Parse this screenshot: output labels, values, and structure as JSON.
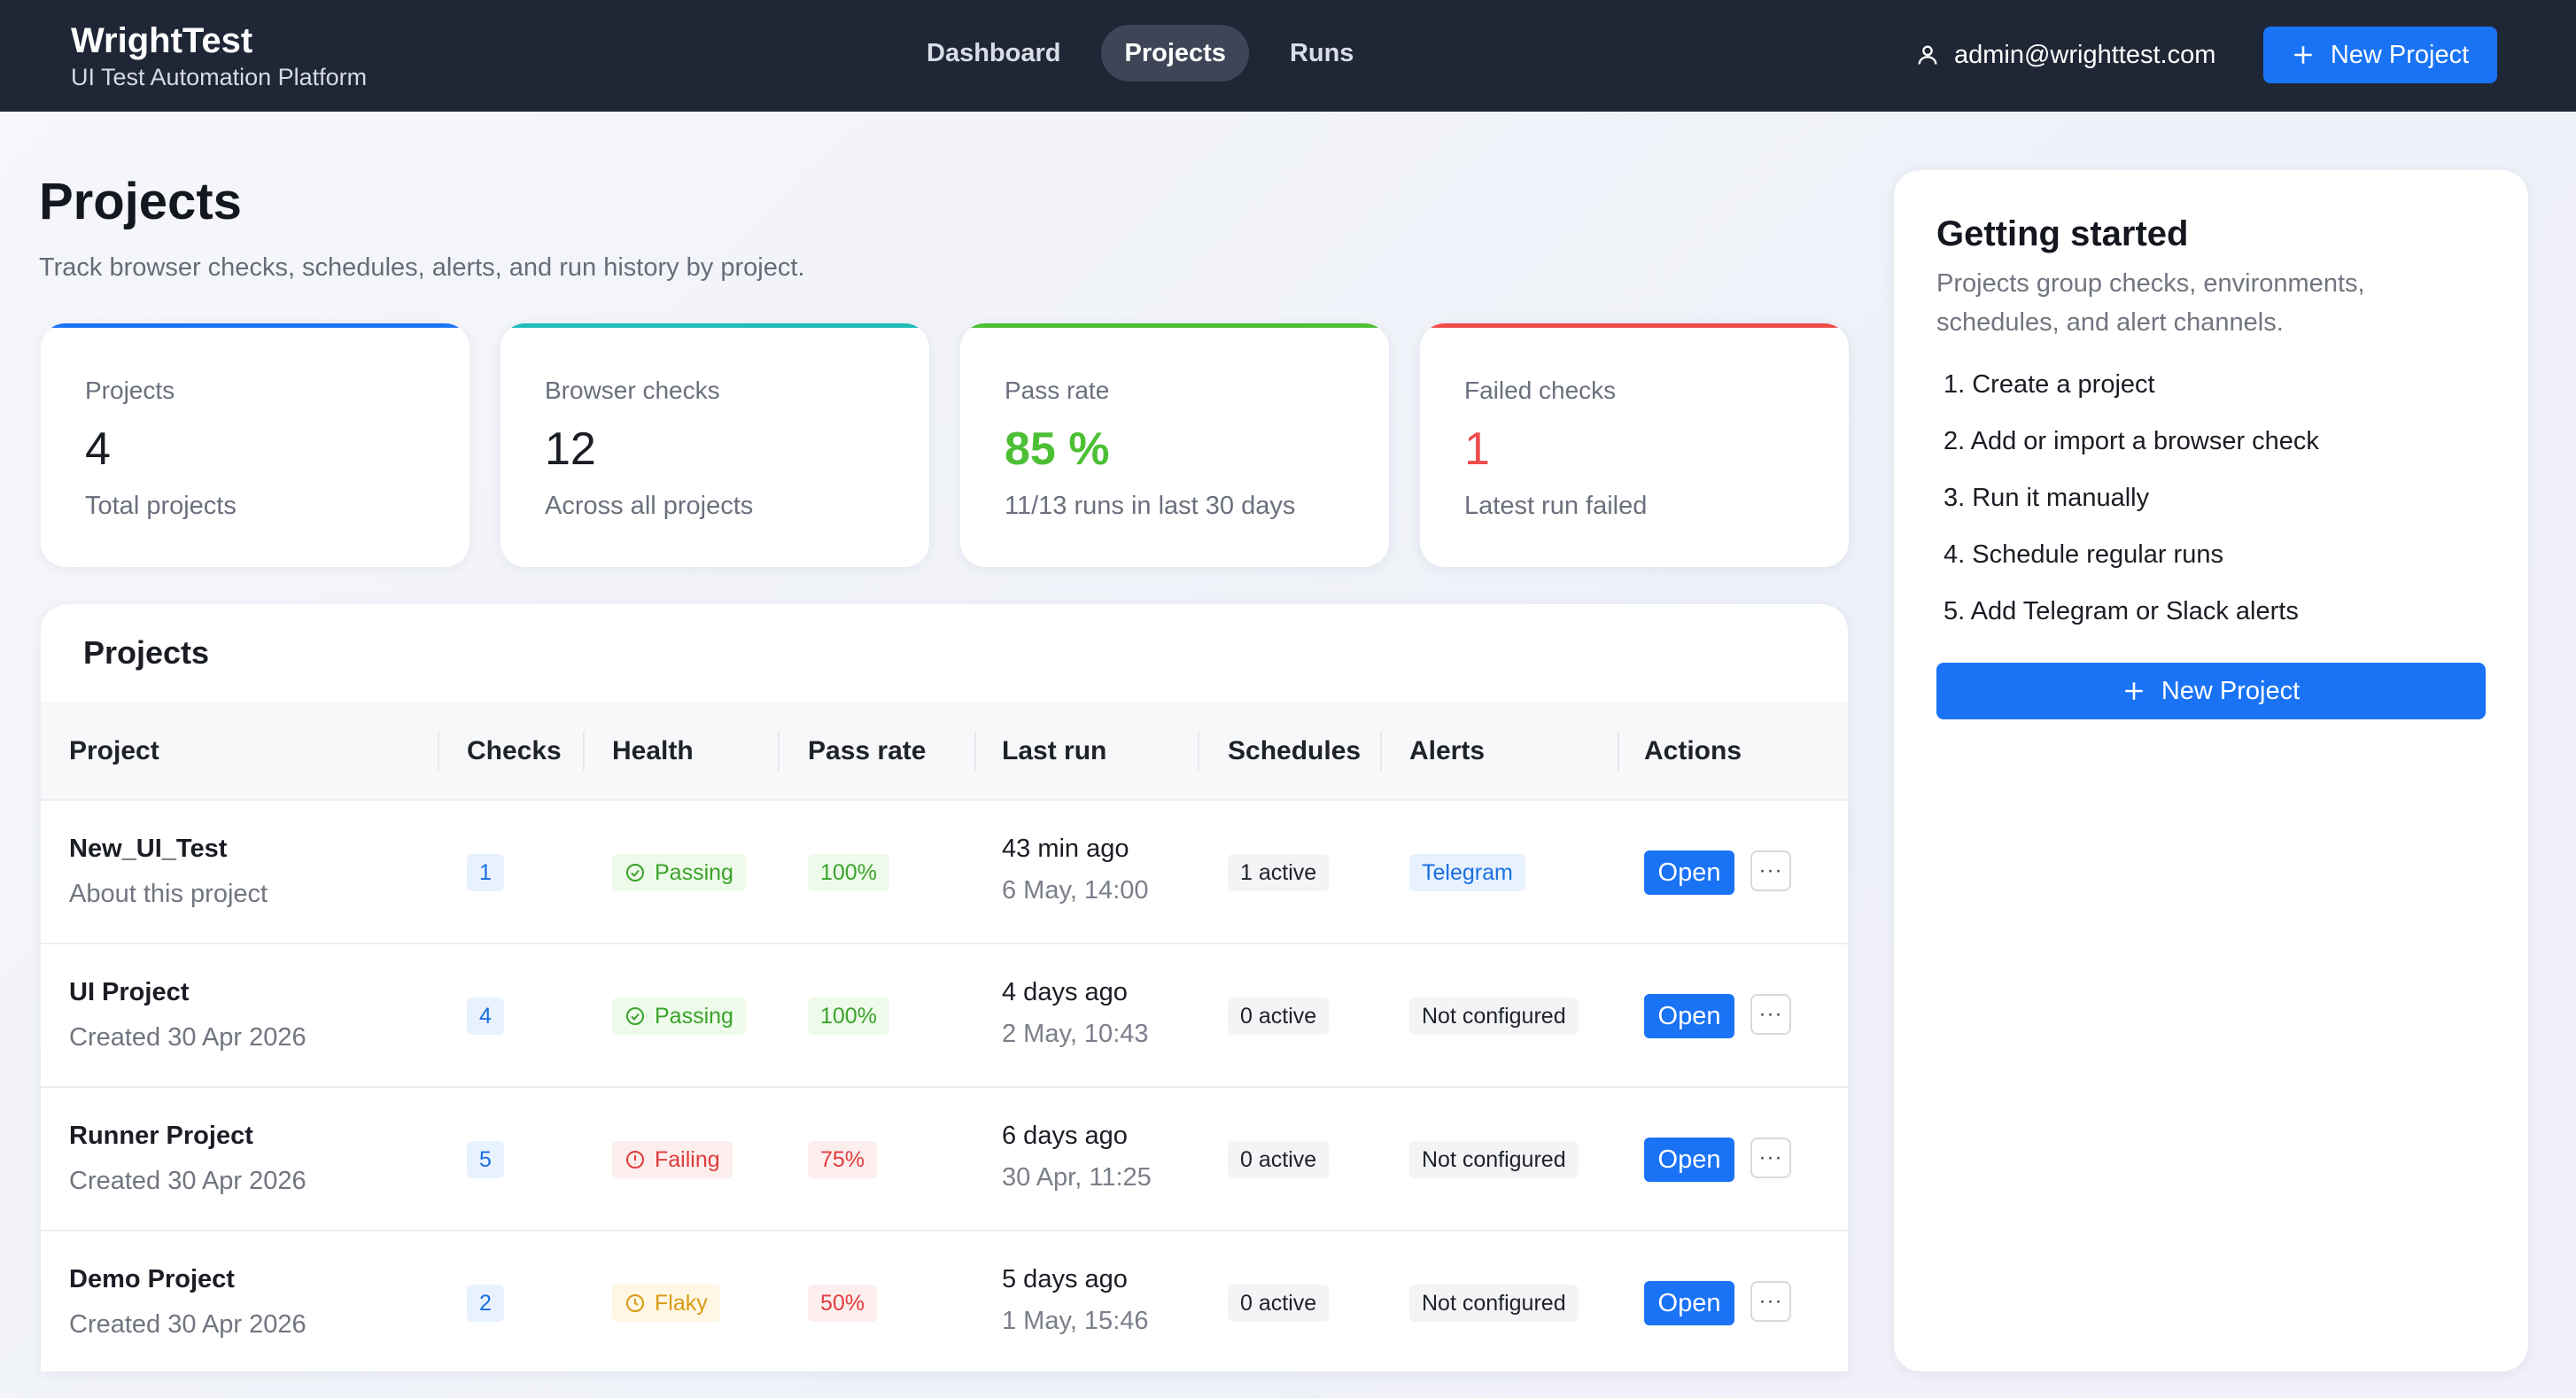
{
  "header": {
    "brand": "WrightTest",
    "tagline": "UI Test Automation Platform",
    "nav": [
      "Dashboard",
      "Projects",
      "Runs"
    ],
    "active_nav": "Projects",
    "user_email": "admin@wrighttest.com",
    "new_project_label": "New Project"
  },
  "page": {
    "title": "Projects",
    "subtitle": "Track browser checks, schedules, alerts, and run history by project."
  },
  "stats": [
    {
      "label": "Projects",
      "value": "4",
      "note": "Total projects",
      "accent": "#1a73f5"
    },
    {
      "label": "Browser checks",
      "value": "12",
      "note": "Across all projects",
      "accent": "#1dbdb8"
    },
    {
      "label": "Pass rate",
      "value": "85 %",
      "note": "11/13 runs in last 30 days",
      "accent": "#4cbf35"
    },
    {
      "label": "Failed checks",
      "value": "1",
      "note": "Latest run failed",
      "accent": "#ef4b4b"
    }
  ],
  "projects_table": {
    "title": "Projects",
    "columns": [
      "Project",
      "Checks",
      "Health",
      "Pass rate",
      "Last run",
      "Schedules",
      "Alerts",
      "Actions"
    ],
    "open_label": "Open",
    "more_label": "···",
    "rows": [
      {
        "name": "New_UI_Test",
        "desc": "About this project",
        "checks": "1",
        "health": "Passing",
        "health_status": "passing",
        "pass_rate": "100%",
        "last_run": "43 min ago",
        "last_run_date": "6 May, 14:00",
        "schedules": "1 active",
        "alerts": "Telegram"
      },
      {
        "name": "UI Project",
        "desc": "Created 30 Apr 2026",
        "checks": "4",
        "health": "Passing",
        "health_status": "passing",
        "pass_rate": "100%",
        "last_run": "4 days ago",
        "last_run_date": "2 May, 10:43",
        "schedules": "0 active",
        "alerts": "Not configured"
      },
      {
        "name": "Runner Project",
        "desc": "Created 30 Apr 2026",
        "checks": "5",
        "health": "Failing",
        "health_status": "failing",
        "pass_rate": "75%",
        "last_run": "6 days ago",
        "last_run_date": "30 Apr, 11:25",
        "schedules": "0 active",
        "alerts": "Not configured"
      },
      {
        "name": "Demo Project",
        "desc": "Created 30 Apr 2026",
        "checks": "2",
        "health": "Flaky",
        "health_status": "flaky",
        "pass_rate": "50%",
        "last_run": "5 days ago",
        "last_run_date": "1 May, 15:46",
        "schedules": "0 active",
        "alerts": "Not configured"
      }
    ]
  },
  "getting_started": {
    "title": "Getting started",
    "description": "Projects group checks, environments, schedules, and alert channels.",
    "steps": [
      "1. Create a project",
      "2. Add or import a browser check",
      "3. Run it manually",
      "4. Schedule regular runs",
      "5. Add Telegram or Slack alerts"
    ],
    "new_project_label": "New Project"
  }
}
